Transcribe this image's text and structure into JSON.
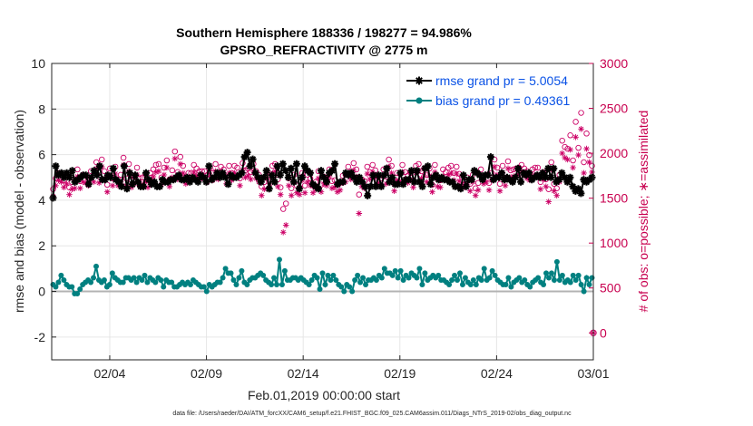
{
  "chart_data": {
    "type": "line",
    "title": "Southern Hemisphere 188336 / 198277 = 94.986%",
    "subtitle": "GPSRO_REFRACTIVITY @ 2775 m",
    "xlabel": "Feb.01,2019 00:00:00 start",
    "ylabel": "rmse and bias (model - observation)",
    "ylabel_right": "# of obs: o=possible; ∗=assimilated",
    "x_range_days": [
      0,
      28
    ],
    "ylim": [
      -3,
      10
    ],
    "ylim_right": [
      -300,
      3000
    ],
    "x_ticks": [
      {
        "day": 3,
        "label": "02/04"
      },
      {
        "day": 8,
        "label": "02/09"
      },
      {
        "day": 13,
        "label": "02/14"
      },
      {
        "day": 18,
        "label": "02/19"
      },
      {
        "day": 23,
        "label": "02/24"
      },
      {
        "day": 28,
        "label": "03/01"
      }
    ],
    "y_ticks": [
      -2,
      0,
      2,
      4,
      6,
      8,
      10
    ],
    "y_ticks_right": [
      0,
      500,
      1000,
      1500,
      2000,
      2500,
      3000
    ],
    "zero_line": 0,
    "right_extra_point": {
      "day": 28,
      "count": 0
    },
    "footnote": "data file: /Users/raeder/DAI/ATM_forcXX/CAM6_setup/f.e21.FHIST_BGC.f09_025.CAM6assim.011/Diags_NTrS_2019-02/obs_diag_output.nc",
    "series": [
      {
        "name": "rmse grand pr = 5.0054",
        "axis": "left",
        "color": "#000000",
        "marker": "asterisk",
        "values": [
          4.1,
          5.5,
          5.1,
          5.2,
          5.0,
          5.2,
          5.0,
          5.3,
          4.8,
          4.9,
          5.0,
          5.1,
          5.1,
          4.7,
          5.0,
          5.3,
          5.1,
          5.5,
          4.9,
          4.9,
          5.1,
          5.0,
          5.4,
          4.9,
          4.8,
          4.6,
          5.5,
          4.5,
          5.2,
          4.7,
          5.1,
          4.8,
          4.6,
          4.6,
          5.2,
          4.9,
          4.7,
          4.8,
          4.6,
          4.6,
          4.9,
          4.8,
          4.8,
          4.9,
          4.9,
          5.0,
          5.1,
          4.9,
          4.9,
          5.0,
          4.8,
          5.0,
          4.9,
          4.8,
          5.1,
          5.0,
          4.8,
          5.5,
          4.9,
          5.0,
          5.2,
          5.0,
          5.2,
          5.0,
          4.7,
          5.1,
          5.0,
          5.0,
          5.1,
          5.2,
          5.9,
          6.1,
          5.5,
          5.8,
          5.2,
          5.0,
          4.8,
          5.0,
          5.3,
          4.5,
          5.1,
          4.8,
          5.5,
          5.1,
          5.6,
          5.3,
          5.0,
          5.4,
          4.8,
          5.6,
          4.5,
          5.0,
          5.5,
          5.3,
          5.2,
          4.7,
          4.6,
          4.5,
          5.3,
          5.0,
          4.8,
          5.2,
          5.3,
          5.6,
          4.7,
          4.8,
          4.8,
          5.2,
          5.1,
          5.2,
          5.0,
          4.8,
          5.0,
          4.8,
          4.6,
          4.2,
          4.6,
          5.1,
          4.6,
          5.1,
          4.6,
          5.1,
          5.4,
          4.8,
          5.0,
          4.7,
          4.7,
          5.2,
          4.7,
          4.9,
          4.9,
          5.3,
          4.8,
          5.3,
          4.8,
          4.6,
          5.4,
          5.5,
          4.7,
          5.0,
          5.1,
          4.9,
          5.0,
          4.9,
          4.9,
          4.8,
          4.8,
          4.6,
          4.6,
          4.5,
          5.1,
          4.6,
          4.9,
          4.9,
          5.3,
          5.2,
          5.1,
          4.9,
          5.1,
          5.1,
          5.9,
          4.9,
          5.0,
          5.0,
          5.2,
          4.9,
          5.0,
          4.9,
          4.8,
          5.0,
          5.4,
          4.8,
          5.2,
          5.1,
          5.2,
          4.9,
          5.0,
          5.1,
          5.0,
          5.2,
          5.0,
          5.4,
          5.0,
          5.4,
          4.8,
          4.9,
          5.2,
          5.0,
          4.8,
          5.0,
          4.6,
          4.4,
          4.5,
          4.3,
          4.9,
          4.8,
          4.9,
          5.0
        ]
      },
      {
        "name": "bias grand pr = 0.49361",
        "axis": "left",
        "color": "#008080",
        "marker": "circle",
        "values": [
          0.3,
          0.2,
          0.4,
          0.7,
          0.5,
          0.3,
          0.2,
          0.2,
          -0.1,
          -0.1,
          0.1,
          0.3,
          0.4,
          0.5,
          0.4,
          0.6,
          1.1,
          0.5,
          0.4,
          0.5,
          0.2,
          0.3,
          0.8,
          0.6,
          0.5,
          0.4,
          0.4,
          0.6,
          0.6,
          0.5,
          0.6,
          0.4,
          0.6,
          0.5,
          0.7,
          0.4,
          0.6,
          0.5,
          0.4,
          0.6,
          0.5,
          0.2,
          0.5,
          0.4,
          0.4,
          0.2,
          0.2,
          0.3,
          0.4,
          0.3,
          0.4,
          0.3,
          0.5,
          0.4,
          0.3,
          0.2,
          0.2,
          0.0,
          0.3,
          0.2,
          0.3,
          0.4,
          0.4,
          0.6,
          1.0,
          0.8,
          0.8,
          0.5,
          0.3,
          0.6,
          0.9,
          0.4,
          0.3,
          0.5,
          0.6,
          0.6,
          0.7,
          0.8,
          0.7,
          0.5,
          0.4,
          0.3,
          0.6,
          0.3,
          1.4,
          0.3,
          0.9,
          0.5,
          0.5,
          0.6,
          0.6,
          0.5,
          0.6,
          0.5,
          0.4,
          0.3,
          0.5,
          0.7,
          0.6,
          0.1,
          0.8,
          0.3,
          0.7,
          0.5,
          0.7,
          0.5,
          0.3,
          0.2,
          0.0,
          0.3,
          0.2,
          0.0,
          0.5,
          0.7,
          0.4,
          0.6,
          0.3,
          0.5,
          0.5,
          0.6,
          0.5,
          0.7,
          0.6,
          1.0,
          0.8,
          0.8,
          0.7,
          0.9,
          0.6,
          0.9,
          0.5,
          0.7,
          0.6,
          0.8,
          0.7,
          0.6,
          1.0,
          0.3,
          0.8,
          0.5,
          0.6,
          0.7,
          0.6,
          0.7,
          0.5,
          0.5,
          0.4,
          0.3,
          0.5,
          0.7,
          0.5,
          0.8,
          0.3,
          0.6,
          0.4,
          0.3,
          0.5,
          0.3,
          0.6,
          0.5,
          1.0,
          0.5,
          0.6,
          0.9,
          0.7,
          0.5,
          0.4,
          0.3,
          0.3,
          0.6,
          0.2,
          0.4,
          0.5,
          0.6,
          0.4,
          0.5,
          0.3,
          0.2,
          0.4,
          0.5,
          0.6,
          0.4,
          0.3,
          0.8,
          0.6,
          0.8,
          0.5,
          1.3,
          0.5,
          0.7,
          0.4,
          0.5,
          0.4,
          0.7,
          0.5,
          0.7,
          0.3,
          0.0,
          0.6,
          0.3,
          0.6
        ]
      },
      {
        "name": "possible",
        "axis": "right",
        "color": "#cc0066",
        "marker": "open-circle",
        "values": [
          1600,
          1720,
          1780,
          1760,
          1700,
          1750,
          1620,
          1680,
          1690,
          1820,
          1690,
          1760,
          1750,
          1720,
          1800,
          1760,
          1900,
          1740,
          1930,
          1800,
          1650,
          1830,
          1720,
          1850,
          1710,
          1760,
          1950,
          1720,
          1880,
          1700,
          1740,
          1840,
          1720,
          1730,
          1760,
          1700,
          1780,
          1820,
          1870,
          1880,
          1730,
          1840,
          1920,
          1710,
          1810,
          2020,
          1790,
          1960,
          1860,
          1740,
          1780,
          1780,
          1870,
          1830,
          1800,
          1800,
          1800,
          1760,
          1840,
          1780,
          1880,
          1790,
          1850,
          1820,
          1740,
          1860,
          1780,
          1860,
          1840,
          1720,
          1890,
          1810,
          1830,
          1790,
          1880,
          1800,
          1760,
          1630,
          1680,
          1800,
          1740,
          1860,
          1880,
          1710,
          1620,
          1380,
          1440,
          1720,
          1610,
          1760,
          1640,
          1620,
          1780,
          1640,
          1760,
          1720,
          1640,
          1680,
          1800,
          1650,
          1740,
          1720,
          1820,
          1690,
          1700,
          1650,
          1670,
          1750,
          1760,
          1850,
          1790,
          1890,
          1820,
          1540,
          1710,
          1690,
          1850,
          1790,
          1870,
          1810,
          1750,
          1720,
          1820,
          1740,
          1930,
          1860,
          1660,
          1780,
          1770,
          1870,
          1790,
          1750,
          1780,
          1700,
          1860,
          1880,
          1800,
          1830,
          1760,
          1830,
          1650,
          1870,
          1710,
          1700,
          1820,
          1790,
          1840,
          1860,
          1780,
          1850,
          1770,
          1740,
          1700,
          1730,
          1660,
          1760,
          1610,
          1670,
          1820,
          1740,
          1760,
          1670,
          1780,
          1930,
          1840,
          1660,
          1860,
          1720,
          1910,
          1810,
          1820,
          1830,
          1840,
          1870,
          1830,
          1800,
          1780,
          1820,
          1840,
          1840,
          1680,
          1790,
          1710,
          1600,
          1900,
          1660,
          1610,
          1760,
          2140,
          2070,
          2050,
          2200,
          1920,
          2350,
          2060,
          2450,
          1900,
          2220,
          1980,
          1860
        ]
      },
      {
        "name": "assimilated",
        "axis": "right",
        "color": "#cc0066",
        "marker": "asterisk",
        "values": [
          1520,
          1640,
          1700,
          1680,
          1620,
          1660,
          1540,
          1600,
          1610,
          1740,
          1610,
          1680,
          1670,
          1640,
          1720,
          1680,
          1830,
          1670,
          1850,
          1720,
          1570,
          1750,
          1640,
          1770,
          1640,
          1680,
          1870,
          1640,
          1800,
          1620,
          1660,
          1760,
          1640,
          1650,
          1680,
          1620,
          1700,
          1740,
          1790,
          1800,
          1650,
          1760,
          1840,
          1630,
          1730,
          1940,
          1710,
          1880,
          1780,
          1660,
          1700,
          1700,
          1790,
          1750,
          1720,
          1720,
          1720,
          1680,
          1760,
          1700,
          1800,
          1710,
          1770,
          1740,
          1660,
          1780,
          1700,
          1780,
          1760,
          1640,
          1810,
          1730,
          1750,
          1710,
          1800,
          1720,
          1680,
          1530,
          1600,
          1720,
          1660,
          1780,
          1800,
          1630,
          1540,
          1120,
          1200,
          1640,
          1530,
          1680,
          1560,
          1540,
          1700,
          1560,
          1680,
          1640,
          1560,
          1600,
          1720,
          1570,
          1660,
          1640,
          1740,
          1610,
          1620,
          1570,
          1590,
          1670,
          1680,
          1770,
          1710,
          1810,
          1740,
          1330,
          1630,
          1610,
          1770,
          1710,
          1790,
          1730,
          1670,
          1640,
          1740,
          1660,
          1850,
          1780,
          1580,
          1700,
          1690,
          1790,
          1710,
          1670,
          1700,
          1620,
          1780,
          1800,
          1720,
          1750,
          1680,
          1750,
          1570,
          1790,
          1630,
          1620,
          1740,
          1710,
          1760,
          1780,
          1700,
          1770,
          1690,
          1660,
          1620,
          1650,
          1580,
          1680,
          1530,
          1590,
          1740,
          1660,
          1680,
          1590,
          1700,
          1850,
          1760,
          1580,
          1780,
          1640,
          1830,
          1730,
          1740,
          1750,
          1760,
          1790,
          1750,
          1720,
          1700,
          1740,
          1760,
          1760,
          1600,
          1710,
          1630,
          1460,
          1820,
          1580,
          1530,
          1680,
          2000,
          1950,
          1930,
          2040,
          1840,
          2180,
          1980,
          2270,
          1780,
          2050,
          1900,
          1790
        ]
      }
    ]
  }
}
